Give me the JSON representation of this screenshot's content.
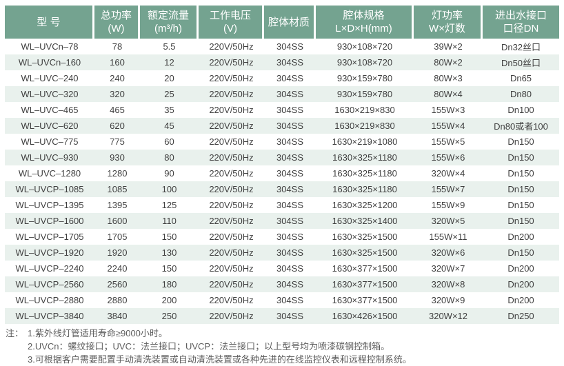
{
  "theme": {
    "header_bg": "#74a390",
    "header_text": "#ffffff",
    "stripe_bg": "#e9f1ed",
    "row_bg": "#ffffff",
    "body_text": "#3f3f3f",
    "note_text": "#5e5e5e"
  },
  "table": {
    "columns": [
      {
        "title": "型 号"
      },
      {
        "title": "总功率\n(W)"
      },
      {
        "title": "额定流量\n(m³/h)"
      },
      {
        "title": "工作电压\n(V)"
      },
      {
        "title": "腔体材质"
      },
      {
        "title": "腔体规格\nL×D×H(mm)"
      },
      {
        "title": "灯功率\nW×灯数"
      },
      {
        "title": "进出水接口\n口径DN"
      }
    ],
    "rows": [
      [
        "WL–UVCn–78",
        "78",
        "5.5",
        "220V/50Hz",
        "304SS",
        "930×108×720",
        "39W×2",
        "Dn32丝口"
      ],
      [
        "WL–UVCn–160",
        "160",
        "12",
        "220V/50Hz",
        "304SS",
        "930×108×720",
        "80W×2",
        "Dn50丝口"
      ],
      [
        "WL–UVC–240",
        "240",
        "20",
        "220V/50Hz",
        "304SS",
        "930×159×780",
        "80W×3",
        "Dn65"
      ],
      [
        "WL–UVC–320",
        "320",
        "25",
        "220V/50Hz",
        "304SS",
        "930×159×780",
        "80W×4",
        "Dn80"
      ],
      [
        "WL–UVC–465",
        "465",
        "35",
        "220V/50Hz",
        "304SS",
        "1630×219×830",
        "155W×3",
        "Dn100"
      ],
      [
        "WL–UVC–620",
        "620",
        "45",
        "220V/50Hz",
        "304SS",
        "1630×219×830",
        "155W×4",
        "Dn80或者100"
      ],
      [
        "WL–UVC–775",
        "775",
        "60",
        "220V/50Hz",
        "304SS",
        "1630×219×1080",
        "155W×5",
        "Dn150"
      ],
      [
        "WL–UVC–930",
        "930",
        "80",
        "220V/50Hz",
        "304SS",
        "1630×325×1180",
        "155W×6",
        "Dn150"
      ],
      [
        "WL–UVC–1280",
        "1280",
        "90",
        "220V/50Hz",
        "304SS",
        "1630×325×1180",
        "320W×4",
        "Dn150"
      ],
      [
        "WL–UVCP–1085",
        "1085",
        "100",
        "220V/50Hz",
        "304SS",
        "1630×325×1180",
        "155W×7",
        "Dn150"
      ],
      [
        "WL–UVCP–1395",
        "1395",
        "125",
        "220V/50Hz",
        "304SS",
        "1630×325×1200",
        "155W×9",
        "Dn150"
      ],
      [
        "WL–UVCP–1600",
        "1600",
        "110",
        "220V/50Hz",
        "304SS",
        "1630×325×1400",
        "320W×5",
        "Dn150"
      ],
      [
        "WL–UVCP–1705",
        "1705",
        "150",
        "220V/50Hz",
        "304SS",
        "1630×325×1500",
        "155W×11",
        "Dn200"
      ],
      [
        "WL–UVCP–1920",
        "1920",
        "130",
        "220V/50Hz",
        "304SS",
        "1630×325×1500",
        "320W×6",
        "Dn150"
      ],
      [
        "WL–UVCP–2240",
        "2240",
        "150",
        "220V/50Hz",
        "304SS",
        "1630×377×1500",
        "320W×7",
        "Dn200"
      ],
      [
        "WL–UVCP–2560",
        "2560",
        "180",
        "220V/50Hz",
        "304SS",
        "1630×377×1500",
        "320W×8",
        "Dn200"
      ],
      [
        "WL–UVCP–2880",
        "2880",
        "200",
        "220V/50Hz",
        "304SS",
        "1630×377×1500",
        "320W×9",
        "Dn200"
      ],
      [
        "WL–UVCP–3840",
        "3840",
        "250",
        "220V/50Hz",
        "304SS",
        "1630×426×1500",
        "320W×12",
        "Dn250"
      ]
    ]
  },
  "notes": {
    "label": "注：",
    "items": [
      "1.紫外线灯管适用寿命≥9000小时。",
      "2.UVCn：螺纹接口；UVC：法兰接口；UVCP：法兰接口；以上型号均为喷漆碳钢控制箱。",
      "3.可根据客户需要配置手动清洗装置或自动清洗装置或各种先进的在线监控仪表和远程控制系统。"
    ]
  }
}
